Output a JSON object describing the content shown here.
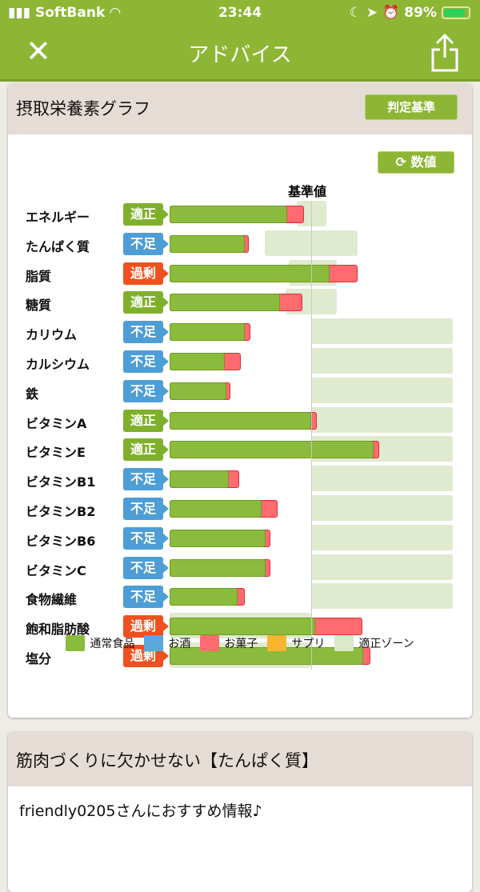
{
  "status": {
    "carrier": "SoftBank",
    "time": "23:44",
    "battery": "89%"
  },
  "header": {
    "title": "アドバイス"
  },
  "graph": {
    "title": "摂取栄養素グラフ",
    "criteria_button": "判定基準",
    "values_button": "数値",
    "reference_label": "基準値"
  },
  "colors": {
    "food": "#8bbb3c",
    "alcohol": "#5aa8dc",
    "snack": "#ff6b6e",
    "supplement": "#fbb330",
    "zone": "#dbe8c9",
    "adequate": "#7fb02b",
    "deficient": "#4d9ed6",
    "excess": "#f0501e"
  },
  "chart_data": {
    "type": "bar",
    "orientation": "horizontal",
    "stacked": true,
    "unit": "% of reference",
    "reference": 100,
    "categories": [
      "エネルギー",
      "たんぱく質",
      "脂質",
      "糖質",
      "カリウム",
      "カルシウム",
      "鉄",
      "ビタミンA",
      "ビタミンE",
      "ビタミンB1",
      "ビタミンB2",
      "ビタミンB6",
      "ビタミンC",
      "食物繊維",
      "飽和脂肪酸",
      "塩分"
    ],
    "status": [
      "適正",
      "不足",
      "過剰",
      "適正",
      "不足",
      "不足",
      "不足",
      "適正",
      "適正",
      "不足",
      "不足",
      "不足",
      "不足",
      "不足",
      "過剰",
      "過剰"
    ],
    "series": [
      {
        "name": "通常食品",
        "values": [
          83,
          53,
          113,
          78,
          53,
          39,
          40,
          100,
          144,
          42,
          65,
          68,
          68,
          48,
          103,
          137
        ]
      },
      {
        "name": "お菓子",
        "values": [
          12,
          3,
          20,
          16,
          4,
          11,
          3,
          4,
          4,
          7,
          11,
          3,
          3,
          5,
          33,
          5
        ]
      }
    ],
    "zones": [
      [
        90,
        111
      ],
      [
        67,
        133
      ],
      [
        84,
        118
      ],
      [
        82,
        118
      ],
      [
        100,
        200
      ],
      [
        100,
        200
      ],
      [
        100,
        200
      ],
      [
        100,
        200
      ],
      [
        100,
        200
      ],
      [
        100,
        200
      ],
      [
        100,
        200
      ],
      [
        100,
        200
      ],
      [
        100,
        200
      ],
      [
        100,
        200
      ],
      [
        0,
        100
      ],
      [
        0,
        100
      ]
    ],
    "legend": [
      "通常食品",
      "お酒",
      "お菓子",
      "サプリ",
      "適正ゾーン"
    ]
  },
  "article": {
    "title": "筋肉づくりに欠かせない【たんぱく質】",
    "subtitle": "friendly0205さんにおすすめ情報♪"
  }
}
